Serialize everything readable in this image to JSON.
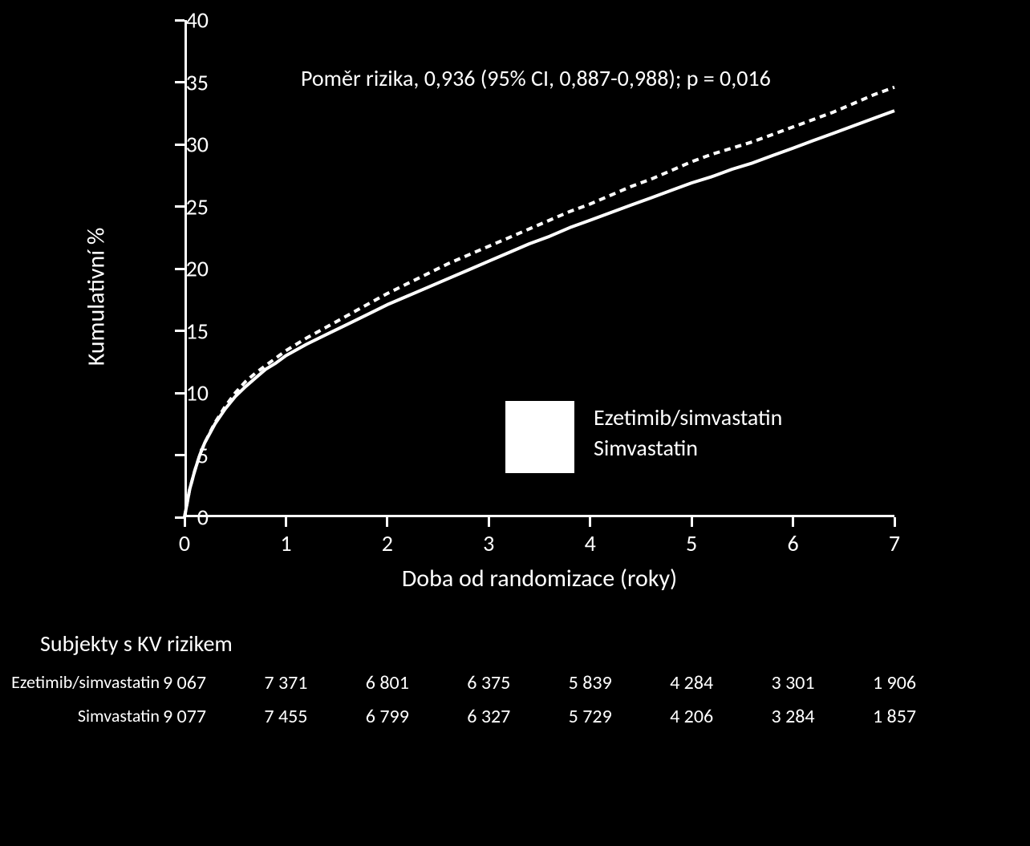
{
  "chart": {
    "type": "line-survival",
    "background_color": "#000000",
    "axis_color": "#ffffff",
    "text_color": "#ffffff",
    "hazard_ratio_text": "Poměr rizika, 0,936 (95% CI, 0,887-0,988); p = 0,016",
    "y_axis": {
      "title": "Kumulativní %",
      "min": 0,
      "max": 40,
      "ticks": [
        0,
        5,
        10,
        15,
        20,
        25,
        30,
        35,
        40
      ],
      "title_fontsize": 30,
      "tick_fontsize": 28
    },
    "x_axis": {
      "title": "Doba od randomizace (roky)",
      "min": 0,
      "max": 7,
      "ticks": [
        0,
        1,
        2,
        3,
        4,
        5,
        6,
        7
      ],
      "title_fontsize": 30,
      "tick_fontsize": 28
    },
    "legend": {
      "items": [
        "Ezetimib/simvastatin",
        "Simvastatin"
      ],
      "box_color": "#ffffff",
      "fontsize": 28
    },
    "series": [
      {
        "name": "Simvastatin",
        "dash": "8,6",
        "color": "#ffffff",
        "line_width": 4,
        "points": [
          [
            0.0,
            0.0
          ],
          [
            0.05,
            2.2
          ],
          [
            0.1,
            3.7
          ],
          [
            0.15,
            5.0
          ],
          [
            0.2,
            6.0
          ],
          [
            0.3,
            7.6
          ],
          [
            0.4,
            8.9
          ],
          [
            0.5,
            10.0
          ],
          [
            0.6,
            10.9
          ],
          [
            0.7,
            11.6
          ],
          [
            0.8,
            12.2
          ],
          [
            0.9,
            12.8
          ],
          [
            1.0,
            13.4
          ],
          [
            1.2,
            14.4
          ],
          [
            1.4,
            15.3
          ],
          [
            1.6,
            16.2
          ],
          [
            1.8,
            17.1
          ],
          [
            2.0,
            18.0
          ],
          [
            2.2,
            18.8
          ],
          [
            2.4,
            19.6
          ],
          [
            2.6,
            20.4
          ],
          [
            2.8,
            21.1
          ],
          [
            3.0,
            21.8
          ],
          [
            3.2,
            22.5
          ],
          [
            3.4,
            23.2
          ],
          [
            3.6,
            23.9
          ],
          [
            3.8,
            24.6
          ],
          [
            4.0,
            25.2
          ],
          [
            4.2,
            25.9
          ],
          [
            4.4,
            26.6
          ],
          [
            4.6,
            27.2
          ],
          [
            4.8,
            27.9
          ],
          [
            5.0,
            28.6
          ],
          [
            5.2,
            29.2
          ],
          [
            5.4,
            29.7
          ],
          [
            5.6,
            30.2
          ],
          [
            5.8,
            30.8
          ],
          [
            6.0,
            31.4
          ],
          [
            6.2,
            32.0
          ],
          [
            6.4,
            32.6
          ],
          [
            6.6,
            33.3
          ],
          [
            6.8,
            34.0
          ],
          [
            7.0,
            34.6
          ]
        ]
      },
      {
        "name": "Ezetimib/simvastatin",
        "dash": "none",
        "color": "#ffffff",
        "line_width": 4,
        "points": [
          [
            0.0,
            0.0
          ],
          [
            0.05,
            2.2
          ],
          [
            0.1,
            3.7
          ],
          [
            0.15,
            5.0
          ],
          [
            0.2,
            6.0
          ],
          [
            0.3,
            7.5
          ],
          [
            0.4,
            8.7
          ],
          [
            0.5,
            9.7
          ],
          [
            0.6,
            10.5
          ],
          [
            0.7,
            11.2
          ],
          [
            0.8,
            11.9
          ],
          [
            0.9,
            12.4
          ],
          [
            1.0,
            13.0
          ],
          [
            1.2,
            13.9
          ],
          [
            1.4,
            14.7
          ],
          [
            1.6,
            15.5
          ],
          [
            1.8,
            16.3
          ],
          [
            2.0,
            17.1
          ],
          [
            2.2,
            17.8
          ],
          [
            2.4,
            18.5
          ],
          [
            2.6,
            19.2
          ],
          [
            2.8,
            19.9
          ],
          [
            3.0,
            20.6
          ],
          [
            3.2,
            21.3
          ],
          [
            3.4,
            22.0
          ],
          [
            3.6,
            22.6
          ],
          [
            3.8,
            23.3
          ],
          [
            4.0,
            23.9
          ],
          [
            4.2,
            24.5
          ],
          [
            4.4,
            25.1
          ],
          [
            4.6,
            25.7
          ],
          [
            4.8,
            26.3
          ],
          [
            5.0,
            26.9
          ],
          [
            5.2,
            27.4
          ],
          [
            5.4,
            28.0
          ],
          [
            5.6,
            28.5
          ],
          [
            5.8,
            29.1
          ],
          [
            6.0,
            29.7
          ],
          [
            6.2,
            30.3
          ],
          [
            6.4,
            30.9
          ],
          [
            6.6,
            31.5
          ],
          [
            6.8,
            32.1
          ],
          [
            7.0,
            32.7
          ]
        ]
      }
    ]
  },
  "risk_table": {
    "title": "Subjekty s KV rizikem",
    "title_fontsize": 28,
    "label_fontsize": 22,
    "value_fontsize": 24,
    "rows": [
      {
        "label": "Ezetimib/simvastatin",
        "values": [
          "9 067",
          "7 371",
          "6 801",
          "6 375",
          "5 839",
          "4 284",
          "3 301",
          "1 906"
        ]
      },
      {
        "label": "Simvastatin",
        "values": [
          "9 077",
          "7 455",
          "6 799",
          "6 327",
          "5 729",
          "4 206",
          "3 284",
          "1 857"
        ]
      }
    ]
  }
}
